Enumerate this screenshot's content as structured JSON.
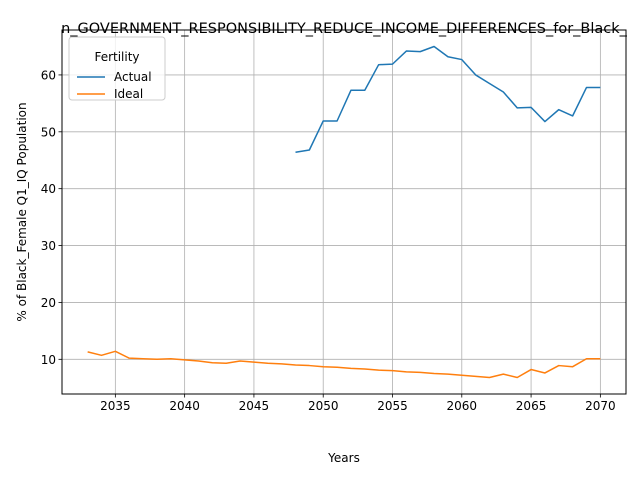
{
  "chart_data": {
    "type": "line",
    "title": "n_GOVERNMENT_RESPONSIBILITY_REDUCE_INCOME_DIFFERENCES_for_Black_",
    "xlabel": "Years",
    "ylabel": "% of Black_Female Q1_IQ Population",
    "xlim": [
      2031.15,
      2071.85
    ],
    "ylim": [
      3.9,
      67.9
    ],
    "xticks": [
      2035,
      2040,
      2045,
      2050,
      2055,
      2060,
      2065,
      2070
    ],
    "yticks": [
      10,
      20,
      30,
      40,
      50,
      60
    ],
    "grid": true,
    "legend": {
      "title": "Fertility",
      "position": "top-left"
    },
    "series": [
      {
        "name": "Actual",
        "color": "#1f77b4",
        "x": [
          2048,
          2049,
          2050,
          2051,
          2052,
          2053,
          2054,
          2055,
          2056,
          2057,
          2058,
          2059,
          2060,
          2061,
          2062,
          2063,
          2064,
          2065,
          2066,
          2067,
          2068,
          2069,
          2070
        ],
        "y": [
          46.4,
          46.8,
          51.9,
          51.9,
          57.3,
          57.3,
          61.8,
          61.9,
          64.2,
          64.1,
          65.0,
          63.2,
          62.7,
          60.0,
          58.5,
          57.0,
          54.2,
          54.3,
          51.8,
          53.9,
          52.8,
          57.8,
          57.8
        ]
      },
      {
        "name": "Ideal",
        "color": "#ff7f0e",
        "x": [
          2033,
          2034,
          2035,
          2036,
          2037,
          2038,
          2039,
          2040,
          2041,
          2042,
          2043,
          2044,
          2045,
          2046,
          2047,
          2048,
          2049,
          2050,
          2051,
          2052,
          2053,
          2054,
          2055,
          2056,
          2057,
          2058,
          2059,
          2060,
          2061,
          2062,
          2063,
          2064,
          2065,
          2066,
          2067,
          2068,
          2069,
          2070
        ],
        "y": [
          11.3,
          10.7,
          11.4,
          10.2,
          10.1,
          10.0,
          10.1,
          9.9,
          9.7,
          9.4,
          9.3,
          9.7,
          9.5,
          9.3,
          9.2,
          9.0,
          8.9,
          8.7,
          8.6,
          8.4,
          8.3,
          8.1,
          8.0,
          7.8,
          7.7,
          7.5,
          7.4,
          7.2,
          7.0,
          6.8,
          7.4,
          6.8,
          8.2,
          7.6,
          8.9,
          8.7,
          10.1,
          10.1
        ]
      }
    ]
  }
}
